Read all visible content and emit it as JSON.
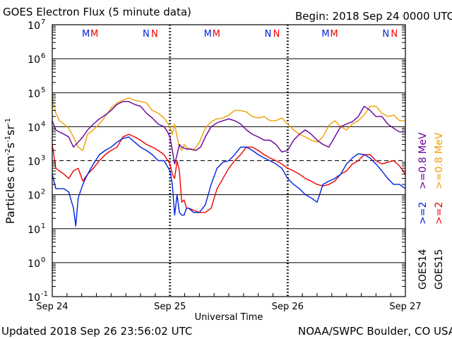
{
  "header": {
    "title": "GOES Electron Flux (5 minute data)",
    "begin": "Begin: 2018 Sep 24 0000 UTC"
  },
  "footer": {
    "updated": "Updated 2018 Sep 26 23:56:02 UTC",
    "credit": "NOAA/SWPC Boulder, CO USA"
  },
  "colors": {
    "goes14_gt2": "#0022dd",
    "goes15_gt2": "#ee0000",
    "goes14_gt08": "#660099",
    "goes15_gt08": "#f0a000",
    "marker_m": "#0022dd",
    "marker_m2": "#ee0000",
    "marker_n": "#0022dd",
    "marker_n2": "#ee0000"
  },
  "chart_data": {
    "type": "line",
    "title": "GOES Electron Flux (5 minute data)",
    "xlabel": "Universal Time",
    "ylabel": "Particles cm^-2 s^-1 sr^-1",
    "y_scale": "log",
    "ylim": [
      0.1,
      10000000
    ],
    "y_ticks": [
      {
        "base": "10",
        "exp": "7"
      },
      {
        "base": "10",
        "exp": "6"
      },
      {
        "base": "10",
        "exp": "5"
      },
      {
        "base": "10",
        "exp": "4"
      },
      {
        "base": "10",
        "exp": "3"
      },
      {
        "base": "10",
        "exp": "2"
      },
      {
        "base": "10",
        "exp": "1"
      },
      {
        "base": "10",
        "exp": "0"
      },
      {
        "base": "10",
        "exp": "-1"
      }
    ],
    "xlim_days": [
      0,
      3
    ],
    "x_ticks": [
      "Sep 24",
      "Sep 25",
      "Sep 26",
      "Sep 27"
    ],
    "grid": true,
    "dashed_reference_level": 1000,
    "day_markers": [
      {
        "day": 0,
        "labels": [
          "M",
          "M",
          "N",
          "N"
        ]
      },
      {
        "day": 1,
        "labels": [
          "M",
          "M",
          "N",
          "N"
        ]
      },
      {
        "day": 2,
        "labels": [
          "M",
          "M",
          "N",
          "N"
        ]
      }
    ],
    "legend": [
      {
        "sat": "GOES14",
        "labels": [
          ">=2",
          ">=0.8 MeV"
        ]
      },
      {
        "sat": "GOES15",
        "labels": [
          ">=2",
          ">=0.8 MeV"
        ]
      }
    ],
    "series": [
      {
        "key": "goes15_gt08",
        "name": "GOES15 >=0.8 MeV",
        "x": [
          0,
          0.03,
          0.06,
          0.1,
          0.14,
          0.18,
          0.22,
          0.26,
          0.3,
          0.35,
          0.4,
          0.45,
          0.5,
          0.55,
          0.6,
          0.65,
          0.7,
          0.75,
          0.8,
          0.85,
          0.9,
          0.95,
          1.0,
          1.02,
          1.04,
          1.06,
          1.08,
          1.1,
          1.12,
          1.14,
          1.16,
          1.2,
          1.25,
          1.3,
          1.35,
          1.4,
          1.45,
          1.5,
          1.55,
          1.6,
          1.65,
          1.7,
          1.75,
          1.8,
          1.85,
          1.9,
          1.95,
          2.0,
          2.05,
          2.1,
          2.15,
          2.2,
          2.25,
          2.3,
          2.35,
          2.4,
          2.45,
          2.5,
          2.55,
          2.6,
          2.65,
          2.7,
          2.75,
          2.8,
          2.85,
          2.9,
          2.95,
          3.0
        ],
        "y": [
          70000,
          25000,
          15000,
          12000,
          9000,
          5000,
          2500,
          2000,
          6000,
          8000,
          12000,
          20000,
          35000,
          50000,
          60000,
          70000,
          60000,
          55000,
          50000,
          30000,
          25000,
          18000,
          10000,
          6000,
          12000,
          5000,
          2500,
          2000,
          3000,
          2500,
          2200,
          2000,
          3500,
          9000,
          14000,
          17000,
          18000,
          22000,
          30000,
          30000,
          27000,
          20000,
          18000,
          20000,
          15000,
          15000,
          18000,
          12000,
          8000,
          6000,
          5000,
          4000,
          3500,
          5000,
          11000,
          15000,
          10000,
          8000,
          12000,
          15000,
          22000,
          40000,
          40000,
          25000,
          20000,
          22000,
          15000,
          15000
        ]
      },
      {
        "key": "goes14_gt08",
        "name": "GOES14 >=0.8 MeV",
        "x": [
          0,
          0.03,
          0.06,
          0.1,
          0.14,
          0.18,
          0.22,
          0.26,
          0.3,
          0.35,
          0.4,
          0.45,
          0.5,
          0.55,
          0.6,
          0.65,
          0.7,
          0.75,
          0.8,
          0.85,
          0.9,
          0.95,
          0.98,
          1.0,
          1.02,
          1.04,
          1.06,
          1.08,
          1.1,
          1.14,
          1.18,
          1.22,
          1.26,
          1.3,
          1.35,
          1.4,
          1.45,
          1.5,
          1.55,
          1.6,
          1.65,
          1.7,
          1.75,
          1.8,
          1.85,
          1.9,
          1.95,
          2.0,
          2.05,
          2.1,
          2.15,
          2.2,
          2.25,
          2.3,
          2.35,
          2.4,
          2.45,
          2.5,
          2.55,
          2.6,
          2.65,
          2.7,
          2.75,
          2.8,
          2.85,
          2.9,
          2.95,
          3.0
        ],
        "y": [
          15000,
          8000,
          7000,
          6000,
          5000,
          2500,
          3500,
          5000,
          8000,
          12000,
          17000,
          22000,
          30000,
          45000,
          55000,
          55000,
          45000,
          40000,
          25000,
          18000,
          12000,
          10000,
          7000,
          5000,
          2000,
          800,
          1500,
          3000,
          2500,
          2200,
          2200,
          2000,
          2500,
          5000,
          10000,
          13000,
          15000,
          17000,
          15000,
          12000,
          8000,
          6000,
          5000,
          4000,
          4000,
          3000,
          1800,
          2000,
          4000,
          6000,
          8000,
          6000,
          4000,
          3000,
          2500,
          5000,
          10000,
          12000,
          14000,
          20000,
          40000,
          30000,
          20000,
          20000,
          12000,
          9000,
          7000,
          7000
        ]
      },
      {
        "key": "goes15_gt2",
        "name": "GOES15 >=2",
        "x": [
          0,
          0.03,
          0.06,
          0.1,
          0.14,
          0.18,
          0.22,
          0.26,
          0.3,
          0.35,
          0.4,
          0.45,
          0.5,
          0.55,
          0.6,
          0.65,
          0.7,
          0.75,
          0.8,
          0.85,
          0.9,
          0.95,
          1.0,
          1.02,
          1.04,
          1.06,
          1.08,
          1.1,
          1.12,
          1.14,
          1.16,
          1.2,
          1.25,
          1.3,
          1.35,
          1.4,
          1.45,
          1.5,
          1.55,
          1.6,
          1.65,
          1.7,
          1.75,
          1.8,
          1.85,
          1.9,
          1.95,
          2.0,
          2.05,
          2.1,
          2.15,
          2.2,
          2.25,
          2.3,
          2.35,
          2.4,
          2.45,
          2.5,
          2.55,
          2.6,
          2.65,
          2.7,
          2.75,
          2.8,
          2.85,
          2.9,
          2.95,
          3.0
        ],
        "y": [
          3000,
          600,
          500,
          400,
          300,
          500,
          600,
          250,
          400,
          600,
          1000,
          1500,
          2000,
          2500,
          5000,
          6000,
          5000,
          4000,
          3000,
          2500,
          2000,
          1500,
          800,
          400,
          300,
          1000,
          500,
          60,
          70,
          40,
          40,
          35,
          30,
          30,
          40,
          150,
          300,
          600,
          1000,
          1500,
          2500,
          2500,
          2000,
          1500,
          1200,
          1000,
          800,
          600,
          500,
          400,
          300,
          250,
          200,
          180,
          200,
          250,
          400,
          500,
          800,
          1000,
          1500,
          1500,
          1000,
          800,
          900,
          1000,
          700,
          400
        ]
      },
      {
        "key": "goes14_gt2",
        "name": "GOES14 >=2",
        "x": [
          0,
          0.03,
          0.06,
          0.1,
          0.14,
          0.18,
          0.2,
          0.22,
          0.26,
          0.3,
          0.35,
          0.4,
          0.45,
          0.5,
          0.55,
          0.6,
          0.65,
          0.7,
          0.75,
          0.8,
          0.85,
          0.9,
          0.95,
          1.0,
          1.02,
          1.04,
          1.06,
          1.08,
          1.1,
          1.12,
          1.14,
          1.16,
          1.2,
          1.25,
          1.3,
          1.35,
          1.4,
          1.45,
          1.5,
          1.55,
          1.6,
          1.65,
          1.7,
          1.75,
          1.8,
          1.85,
          1.9,
          1.95,
          2.0,
          2.05,
          2.1,
          2.15,
          2.2,
          2.25,
          2.3,
          2.35,
          2.4,
          2.45,
          2.5,
          2.55,
          2.6,
          2.65,
          2.7,
          2.75,
          2.8,
          2.85,
          2.9,
          2.95,
          3.0
        ],
        "y": [
          400,
          150,
          150,
          150,
          120,
          40,
          12,
          80,
          200,
          400,
          800,
          1500,
          2000,
          2500,
          3500,
          4500,
          5000,
          3500,
          2500,
          2000,
          1500,
          1000,
          1000,
          500,
          200,
          25,
          100,
          30,
          25,
          25,
          40,
          40,
          30,
          30,
          50,
          200,
          600,
          900,
          1000,
          1500,
          2500,
          2500,
          2000,
          1500,
          1200,
          1000,
          800,
          600,
          300,
          200,
          150,
          100,
          80,
          60,
          200,
          250,
          300,
          400,
          800,
          1200,
          1600,
          1500,
          1200,
          800,
          500,
          300,
          200,
          200,
          150
        ]
      }
    ]
  }
}
